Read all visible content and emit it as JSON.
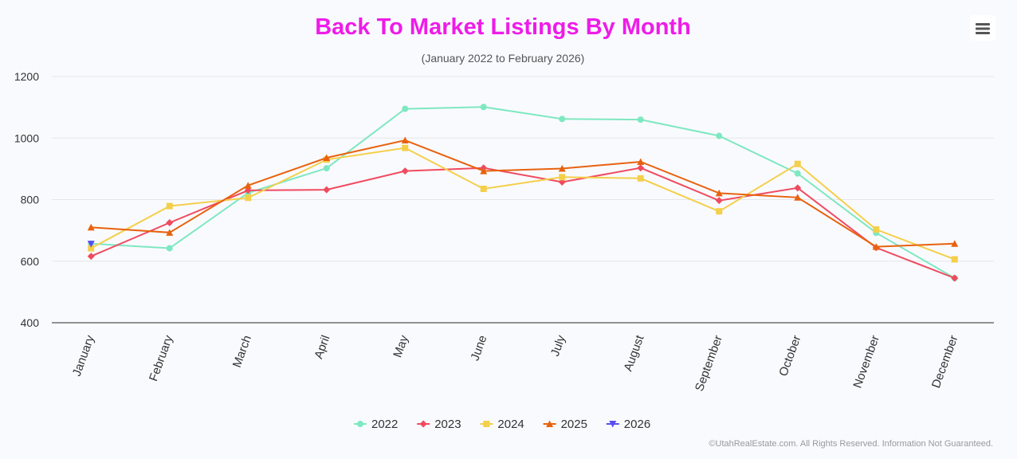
{
  "menu": {
    "icon": "hamburger-menu-icon"
  },
  "credit": "©UtahRealEstate.com. All Rights Reserved. Information Not Guaranteed.",
  "chart_data": {
    "type": "line",
    "title": "Back To Market Listings By Month",
    "subtitle": "(January 2022 to February 2026)",
    "xlabel": "",
    "ylabel": "",
    "ylim": [
      400,
      1200
    ],
    "yticks": [
      400,
      600,
      800,
      1000,
      1200
    ],
    "grid": true,
    "legend_position": "bottom-center",
    "categories": [
      "January",
      "February",
      "March",
      "April",
      "May",
      "June",
      "July",
      "August",
      "September",
      "October",
      "November",
      "December"
    ],
    "series": [
      {
        "name": "2022",
        "color": "#7ee8c0",
        "marker": "circle",
        "values": [
          657,
          642,
          822,
          902,
          1095,
          1101,
          1062,
          1060,
          1007,
          885,
          692,
          545
        ]
      },
      {
        "name": "2023",
        "color": "#f04a5f",
        "marker": "diamond",
        "values": [
          616,
          725,
          830,
          832,
          893,
          903,
          857,
          903,
          797,
          838,
          644,
          545
        ]
      },
      {
        "name": "2024",
        "color": "#f4cf4a",
        "marker": "square",
        "values": [
          642,
          779,
          806,
          930,
          968,
          835,
          873,
          869,
          762,
          916,
          703,
          606
        ]
      },
      {
        "name": "2025",
        "color": "#e8620e",
        "marker": "triangle",
        "values": [
          710,
          693,
          846,
          936,
          993,
          893,
          901,
          923,
          821,
          807,
          647,
          657
        ]
      },
      {
        "name": "2026",
        "color": "#5a4ef0",
        "marker": "triangle-down",
        "values": [
          656,
          null,
          null,
          null,
          null,
          null,
          null,
          null,
          null,
          null,
          null,
          null
        ]
      }
    ]
  },
  "colors": {
    "title": "#ee1ce8",
    "axis": "#333333",
    "grid": "#e6e6e6"
  }
}
